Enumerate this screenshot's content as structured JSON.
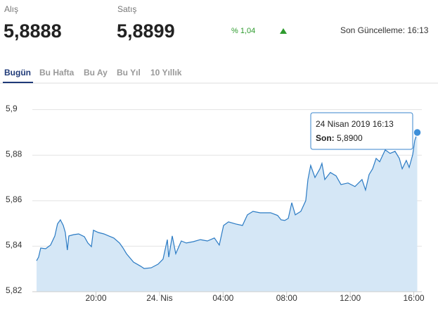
{
  "header": {
    "buy_label": "Alış",
    "buy_value": "5,8888",
    "sell_label": "Satış",
    "sell_value": "5,8899",
    "change": "% 1,04",
    "updated": "Son Güncelleme: 16:13"
  },
  "tabs": [
    "Bugün",
    "Bu Hafta",
    "Bu Ay",
    "Bu Yıl",
    "10 Yıllık"
  ],
  "chart_data": {
    "type": "area",
    "color": "#2b7bc4",
    "fill": "#d5e7f6",
    "x": [
      -7.74,
      -7.61,
      -7.48,
      -7.17,
      -6.86,
      -6.59,
      -6.42,
      -6.24,
      -6.06,
      -5.93,
      -5.8,
      -5.71,
      -5.4,
      -5.09,
      -4.73,
      -4.51,
      -4.29,
      -4.16,
      -3.85,
      -3.5,
      -3.19,
      -2.88,
      -2.52,
      -2.3,
      -2.08,
      -1.64,
      -1.19,
      -0.97,
      -0.53,
      -0.09,
      0.22,
      0.49,
      0.58,
      0.8,
      1.02,
      1.37,
      1.68,
      2.12,
      2.57,
      3.01,
      3.45,
      3.76,
      4.03,
      4.34,
      4.78,
      5.22,
      5.53,
      5.88,
      6.33,
      6.99,
      7.43,
      7.65,
      7.88,
      8.1,
      8.32,
      8.54,
      8.89,
      9.2,
      9.34,
      9.51,
      9.78,
      10.09,
      10.22,
      10.4,
      10.75,
      11.11,
      11.42,
      11.86,
      12.3,
      12.74,
      12.96,
      13.19,
      13.41,
      13.63,
      13.85,
      14.2,
      14.51,
      14.82,
      15.09,
      15.27,
      15.53,
      15.71,
      15.93,
      16.06,
      16.22
    ],
    "values": [
      5.8336,
      5.8352,
      5.8392,
      5.8389,
      5.8405,
      5.8445,
      5.8498,
      5.8516,
      5.8491,
      5.846,
      5.8383,
      5.8445,
      5.8451,
      5.8454,
      5.8442,
      5.8414,
      5.8398,
      5.847,
      5.846,
      5.8454,
      5.8445,
      5.8436,
      5.8414,
      5.8392,
      5.8367,
      5.833,
      5.8312,
      5.8302,
      5.8305,
      5.8321,
      5.8343,
      5.8429,
      5.8352,
      5.8445,
      5.8367,
      5.8423,
      5.8414,
      5.842,
      5.8429,
      5.8423,
      5.8436,
      5.8405,
      5.8491,
      5.8507,
      5.8498,
      5.8491,
      5.8538,
      5.8553,
      5.8547,
      5.8547,
      5.8535,
      5.8516,
      5.8513,
      5.8522,
      5.8591,
      5.8538,
      5.8553,
      5.86,
      5.8693,
      5.8755,
      5.8702,
      5.874,
      5.8764,
      5.8693,
      5.8724,
      5.8709,
      5.8671,
      5.8678,
      5.8662,
      5.8693,
      5.8647,
      5.8715,
      5.874,
      5.8786,
      5.8771,
      5.8823,
      5.8808,
      5.8817,
      5.8786,
      5.874,
      5.8777,
      5.8746,
      5.8802,
      5.8864,
      5.89
    ],
    "xlim": [
      -7.74,
      16.4
    ],
    "ylim": [
      5.82,
      5.903
    ],
    "xticks": [
      {
        "value": -4,
        "label": "20:00"
      },
      {
        "value": 0,
        "label": "24. Nis"
      },
      {
        "value": 4,
        "label": "04:00"
      },
      {
        "value": 8,
        "label": "08:00"
      },
      {
        "value": 12,
        "label": "12:00"
      },
      {
        "value": 16,
        "label": "16:00"
      }
    ],
    "yticks": [
      {
        "value": 5.82,
        "label": "5,82"
      },
      {
        "value": 5.84,
        "label": "5,84"
      },
      {
        "value": 5.86,
        "label": "5,86"
      },
      {
        "value": 5.88,
        "label": "5,88"
      },
      {
        "value": 5.9,
        "label": "5,9"
      }
    ],
    "grid": true,
    "annotation": {
      "text": "24 Nisan 2019 16:13",
      "label": "Son:",
      "value": 5.89,
      "value_label": "5,8900"
    }
  }
}
